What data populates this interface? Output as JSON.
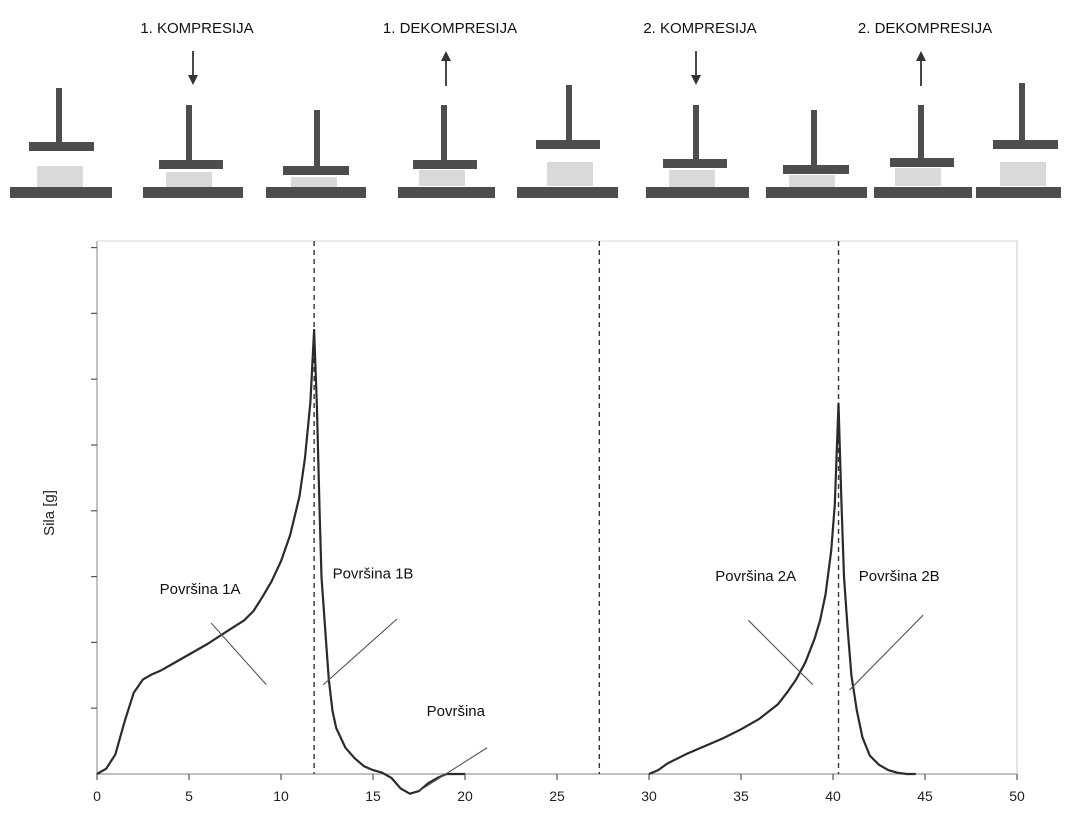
{
  "phases": [
    {
      "label": "1. KOMPRESIJA",
      "arrow": "down"
    },
    {
      "label": "1. DEKOMPRESIJA",
      "arrow": "up"
    },
    {
      "label": "2. KOMPRESIJA",
      "arrow": "down"
    },
    {
      "label": "2. DEKOMPRESIJA",
      "arrow": "up"
    }
  ],
  "colors": {
    "probe": "#4d4d4d",
    "sample": "#d9d9d9",
    "curve": "#2b2b2b",
    "axis": "#9a9a9a"
  },
  "chart_data": {
    "type": "line",
    "title": "",
    "xlabel": "",
    "ylabel": "Sila [g]",
    "xlim": [
      0,
      50
    ],
    "ylim": [
      -15,
      400
    ],
    "x_ticks": [
      0,
      5,
      10,
      15,
      20,
      25,
      30,
      35,
      40,
      45,
      50
    ],
    "y_tick_count": 8,
    "y_tick_labels_shown": false,
    "grid": false,
    "vertical_dashed_lines": [
      11.8,
      27.3,
      40.3
    ],
    "series": [
      {
        "name": "",
        "segments": [
          {
            "x": [
              0,
              0.5,
              1,
              1.5,
              2,
              2.5,
              3,
              3.5,
              4,
              5,
              6,
              7,
              8,
              8.5,
              9,
              9.5,
              10,
              10.5,
              11,
              11.3,
              11.6,
              11.8,
              11.95,
              12.1,
              12.2,
              12.4,
              12.6,
              12.8,
              13,
              13.5,
              14,
              14.5,
              15,
              15.5,
              16,
              16.5,
              17,
              17.5,
              18,
              18.5,
              19,
              19.5,
              20
            ],
            "y": [
              0,
              4,
              15,
              40,
              62,
              72,
              76,
              79,
              83,
              91,
              99,
              108,
              117,
              124,
              135,
              147,
              162,
              182,
              211,
              240,
              283,
              338,
              280,
              200,
              150,
              110,
              72,
              48,
              35,
              20,
              12,
              6,
              3,
              1,
              -3,
              -11,
              -15,
              -13,
              -7,
              -3,
              0,
              0,
              0
            ]
          },
          {
            "x": [
              30,
              30.5,
              31,
              32,
              33,
              34,
              35,
              36,
              37,
              37.5,
              38,
              38.5,
              39,
              39.3,
              39.6,
              39.9,
              40.1,
              40.3,
              40.45,
              40.6,
              40.8,
              41,
              41.3,
              41.6,
              42,
              42.5,
              43,
              43.5,
              44,
              44.5
            ],
            "y": [
              0,
              3,
              8,
              15,
              21,
              27,
              34,
              42,
              53,
              62,
              72,
              85,
              103,
              117,
              137,
              170,
              205,
              282,
              210,
              150,
              110,
              75,
              48,
              28,
              14,
              7,
              3,
              1,
              0,
              0
            ]
          }
        ]
      }
    ],
    "annotations": [
      {
        "text": "Površina 1A",
        "x": 5.6,
        "y": 137,
        "pointer_to": [
          6.2,
          115
        ],
        "pointer_end": [
          9.2,
          68
        ]
      },
      {
        "text": "Površina 1B",
        "x": 15,
        "y": 149,
        "pointer_to": [
          12.3,
          68
        ],
        "pointer_end": [
          16.3,
          118
        ]
      },
      {
        "text": "Površina",
        "x": 19.5,
        "y": 44,
        "pointer_to": [
          17.5,
          -13
        ],
        "pointer_end": [
          21.2,
          20
        ]
      },
      {
        "text": "Površina 2A",
        "x": 35.8,
        "y": 147,
        "pointer_to": [
          38.9,
          68
        ],
        "pointer_end": [
          35.4,
          117
        ]
      },
      {
        "text": "Površina 2B",
        "x": 43.6,
        "y": 147,
        "pointer_to": [
          40.9,
          64
        ],
        "pointer_end": [
          44.9,
          121
        ]
      }
    ]
  }
}
